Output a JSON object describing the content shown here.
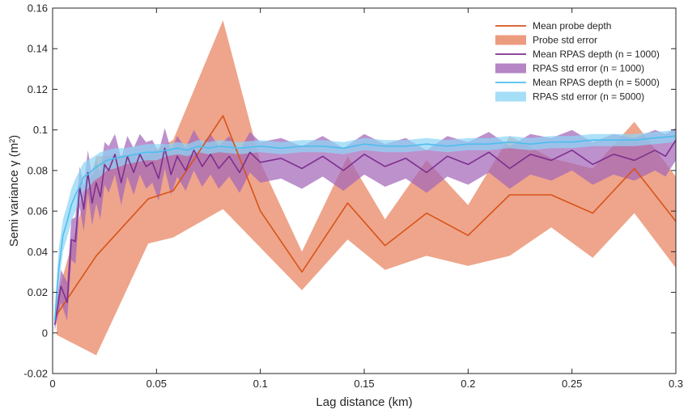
{
  "chart_data": {
    "type": "line",
    "xlabel": "Lag distance (km)",
    "ylabel": "Semi variance γ (m²)",
    "xlim": [
      0,
      0.3
    ],
    "ylim": [
      -0.02,
      0.16
    ],
    "x_ticks": [
      0,
      0.05,
      0.1,
      0.15,
      0.2,
      0.25,
      0.3
    ],
    "x_tick_labels": [
      "0",
      "0.05",
      "0.1",
      "0.15",
      "0.2",
      "0.25",
      "0.3"
    ],
    "y_ticks": [
      -0.02,
      0,
      0.02,
      0.04,
      0.06,
      0.08,
      0.1,
      0.12,
      0.14,
      0.16
    ],
    "y_tick_labels": [
      "-0.02",
      "0",
      "0.02",
      "0.04",
      "0.06",
      "0.08",
      "0.1",
      "0.12",
      "0.14",
      "0.16"
    ],
    "grid": false,
    "legend_position": "top-right",
    "colors": {
      "probe_line": "#d95319",
      "probe_band": "#e8825e",
      "rpas1000_line": "#7e2f8e",
      "rpas1000_band": "#a366b8",
      "rpas5000_line": "#4dbeee",
      "rpas5000_band": "#8fd6f5"
    },
    "series": [
      {
        "name": "Mean probe depth",
        "kind": "line",
        "x": [
          0.002,
          0.021,
          0.046,
          0.058,
          0.082,
          0.1,
          0.12,
          0.142,
          0.16,
          0.18,
          0.2,
          0.22,
          0.24,
          0.26,
          0.28,
          0.3
        ],
        "y": [
          0.009,
          0.038,
          0.066,
          0.07,
          0.107,
          0.06,
          0.03,
          0.064,
          0.043,
          0.059,
          0.048,
          0.068,
          0.068,
          0.059,
          0.081,
          0.055
        ]
      },
      {
        "name": "Probe std error",
        "kind": "band",
        "x": [
          0.002,
          0.021,
          0.046,
          0.058,
          0.082,
          0.1,
          0.12,
          0.142,
          0.16,
          0.18,
          0.2,
          0.22,
          0.24,
          0.26,
          0.28,
          0.3
        ],
        "lower": [
          -0.001,
          -0.011,
          0.044,
          0.047,
          0.061,
          0.042,
          0.021,
          0.046,
          0.031,
          0.038,
          0.033,
          0.038,
          0.052,
          0.037,
          0.059,
          0.032
        ],
        "upper": [
          0.017,
          0.087,
          0.088,
          0.095,
          0.154,
          0.084,
          0.04,
          0.087,
          0.056,
          0.085,
          0.063,
          0.097,
          0.086,
          0.081,
          0.104,
          0.077
        ]
      },
      {
        "name": "Mean RPAS depth (n = 1000)",
        "kind": "line",
        "x": [
          0.001,
          0.004,
          0.007,
          0.009,
          0.011,
          0.013,
          0.015,
          0.017,
          0.019,
          0.021,
          0.023,
          0.025,
          0.027,
          0.03,
          0.033,
          0.036,
          0.039,
          0.042,
          0.045,
          0.048,
          0.051,
          0.054,
          0.057,
          0.06,
          0.064,
          0.068,
          0.072,
          0.076,
          0.08,
          0.085,
          0.09,
          0.095,
          0.1,
          0.11,
          0.12,
          0.13,
          0.14,
          0.15,
          0.16,
          0.17,
          0.18,
          0.19,
          0.2,
          0.21,
          0.22,
          0.23,
          0.24,
          0.25,
          0.26,
          0.27,
          0.28,
          0.29,
          0.295,
          0.3
        ],
        "y": [
          0.004,
          0.023,
          0.015,
          0.046,
          0.045,
          0.072,
          0.061,
          0.079,
          0.064,
          0.074,
          0.067,
          0.083,
          0.08,
          0.088,
          0.074,
          0.087,
          0.079,
          0.088,
          0.082,
          0.084,
          0.076,
          0.091,
          0.078,
          0.087,
          0.08,
          0.09,
          0.082,
          0.088,
          0.081,
          0.087,
          0.079,
          0.089,
          0.084,
          0.086,
          0.081,
          0.087,
          0.08,
          0.088,
          0.082,
          0.086,
          0.079,
          0.087,
          0.083,
          0.089,
          0.081,
          0.088,
          0.085,
          0.09,
          0.083,
          0.088,
          0.085,
          0.09,
          0.087,
          0.095
        ]
      },
      {
        "name": "RPAS std error (n = 1000)",
        "kind": "band",
        "x": [
          0.001,
          0.004,
          0.007,
          0.009,
          0.011,
          0.013,
          0.015,
          0.017,
          0.019,
          0.021,
          0.023,
          0.025,
          0.027,
          0.03,
          0.033,
          0.036,
          0.039,
          0.042,
          0.045,
          0.048,
          0.051,
          0.054,
          0.057,
          0.06,
          0.064,
          0.068,
          0.072,
          0.076,
          0.08,
          0.085,
          0.09,
          0.095,
          0.1,
          0.11,
          0.12,
          0.13,
          0.14,
          0.15,
          0.16,
          0.17,
          0.18,
          0.19,
          0.2,
          0.21,
          0.22,
          0.23,
          0.24,
          0.25,
          0.26,
          0.27,
          0.28,
          0.29,
          0.295,
          0.3
        ],
        "lower": [
          0.001,
          0.015,
          0.006,
          0.036,
          0.034,
          0.062,
          0.05,
          0.069,
          0.053,
          0.064,
          0.056,
          0.073,
          0.069,
          0.078,
          0.063,
          0.077,
          0.068,
          0.078,
          0.071,
          0.074,
          0.065,
          0.081,
          0.068,
          0.077,
          0.07,
          0.08,
          0.072,
          0.078,
          0.071,
          0.077,
          0.069,
          0.079,
          0.074,
          0.076,
          0.071,
          0.077,
          0.07,
          0.078,
          0.072,
          0.076,
          0.069,
          0.077,
          0.073,
          0.079,
          0.071,
          0.078,
          0.075,
          0.08,
          0.073,
          0.078,
          0.075,
          0.08,
          0.077,
          0.085
        ],
        "upper": [
          0.008,
          0.031,
          0.025,
          0.056,
          0.057,
          0.082,
          0.073,
          0.09,
          0.077,
          0.085,
          0.079,
          0.094,
          0.092,
          0.098,
          0.086,
          0.097,
          0.091,
          0.098,
          0.094,
          0.095,
          0.089,
          0.101,
          0.09,
          0.097,
          0.091,
          0.1,
          0.093,
          0.098,
          0.092,
          0.097,
          0.09,
          0.099,
          0.094,
          0.096,
          0.092,
          0.097,
          0.091,
          0.098,
          0.093,
          0.096,
          0.09,
          0.097,
          0.094,
          0.099,
          0.092,
          0.098,
          0.096,
          0.1,
          0.094,
          0.098,
          0.096,
          0.1,
          0.098,
          0.101
        ]
      },
      {
        "name": "Mean RPAS depth (n = 5000)",
        "kind": "line",
        "x": [
          0.001,
          0.003,
          0.005,
          0.007,
          0.009,
          0.011,
          0.013,
          0.015,
          0.017,
          0.02,
          0.023,
          0.026,
          0.03,
          0.035,
          0.04,
          0.045,
          0.05,
          0.055,
          0.06,
          0.065,
          0.07,
          0.075,
          0.08,
          0.09,
          0.1,
          0.11,
          0.12,
          0.13,
          0.14,
          0.15,
          0.16,
          0.17,
          0.18,
          0.19,
          0.2,
          0.21,
          0.22,
          0.23,
          0.24,
          0.25,
          0.26,
          0.27,
          0.28,
          0.29,
          0.3
        ],
        "y": [
          0.006,
          0.032,
          0.048,
          0.055,
          0.063,
          0.068,
          0.072,
          0.077,
          0.078,
          0.081,
          0.083,
          0.085,
          0.086,
          0.087,
          0.088,
          0.089,
          0.089,
          0.09,
          0.091,
          0.09,
          0.092,
          0.091,
          0.092,
          0.091,
          0.092,
          0.091,
          0.092,
          0.092,
          0.091,
          0.093,
          0.092,
          0.092,
          0.093,
          0.092,
          0.093,
          0.093,
          0.094,
          0.093,
          0.094,
          0.094,
          0.095,
          0.095,
          0.095,
          0.096,
          0.097
        ]
      },
      {
        "name": "RPAS std error (n = 5000)",
        "kind": "band",
        "x": [
          0.001,
          0.003,
          0.005,
          0.007,
          0.009,
          0.011,
          0.013,
          0.015,
          0.017,
          0.02,
          0.023,
          0.026,
          0.03,
          0.035,
          0.04,
          0.045,
          0.05,
          0.055,
          0.06,
          0.065,
          0.07,
          0.075,
          0.08,
          0.09,
          0.1,
          0.11,
          0.12,
          0.13,
          0.14,
          0.15,
          0.16,
          0.17,
          0.18,
          0.19,
          0.2,
          0.21,
          0.22,
          0.23,
          0.24,
          0.25,
          0.26,
          0.27,
          0.28,
          0.29,
          0.3
        ],
        "lower": [
          0.001,
          0.024,
          0.04,
          0.047,
          0.055,
          0.06,
          0.064,
          0.07,
          0.071,
          0.075,
          0.077,
          0.08,
          0.081,
          0.083,
          0.084,
          0.085,
          0.085,
          0.087,
          0.088,
          0.087,
          0.089,
          0.088,
          0.089,
          0.088,
          0.089,
          0.088,
          0.089,
          0.089,
          0.088,
          0.09,
          0.089,
          0.089,
          0.09,
          0.089,
          0.09,
          0.09,
          0.091,
          0.09,
          0.091,
          0.091,
          0.092,
          0.092,
          0.092,
          0.093,
          0.094
        ],
        "upper": [
          0.012,
          0.042,
          0.056,
          0.063,
          0.071,
          0.076,
          0.08,
          0.084,
          0.085,
          0.087,
          0.089,
          0.09,
          0.091,
          0.091,
          0.092,
          0.093,
          0.093,
          0.093,
          0.094,
          0.093,
          0.095,
          0.094,
          0.095,
          0.094,
          0.095,
          0.094,
          0.095,
          0.095,
          0.094,
          0.096,
          0.095,
          0.095,
          0.096,
          0.095,
          0.096,
          0.096,
          0.097,
          0.096,
          0.097,
          0.097,
          0.098,
          0.098,
          0.098,
          0.099,
          0.1
        ]
      }
    ]
  },
  "legend": {
    "items": [
      {
        "label": "Mean probe depth",
        "kind": "line",
        "color_key": "probe_line"
      },
      {
        "label": "Probe std error",
        "kind": "band",
        "color_key": "probe_band"
      },
      {
        "label": "Mean RPAS depth (n = 1000)",
        "kind": "line",
        "color_key": "rpas1000_line"
      },
      {
        "label": "RPAS std error (n = 1000)",
        "kind": "band",
        "color_key": "rpas1000_band"
      },
      {
        "label": "Mean RPAS depth (n = 5000)",
        "kind": "line",
        "color_key": "rpas5000_line"
      },
      {
        "label": "RPAS std error (n = 5000)",
        "kind": "band",
        "color_key": "rpas5000_band"
      }
    ]
  }
}
